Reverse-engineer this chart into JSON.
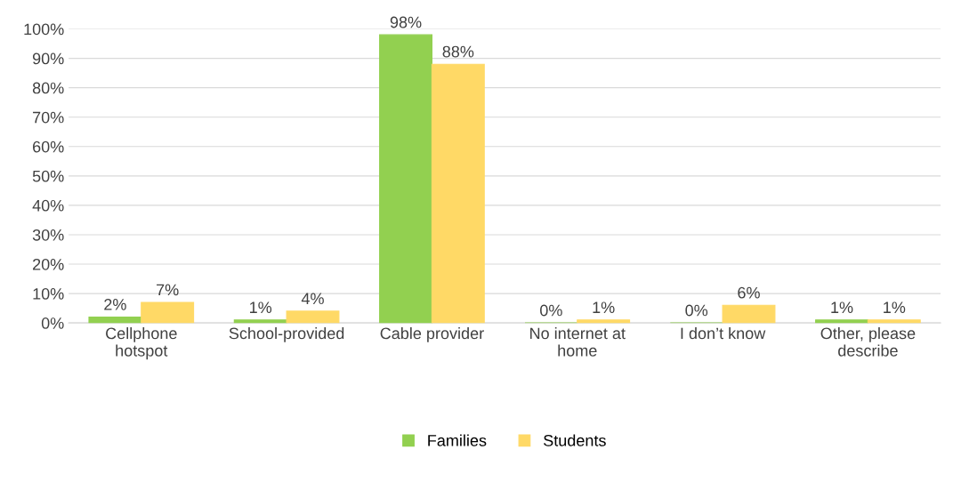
{
  "chart_data": {
    "type": "bar",
    "categories": [
      "Cellphone hotspot",
      "School-provided",
      "Cable provider",
      "No internet at home",
      "I don’t know",
      "Other, please describe"
    ],
    "series": [
      {
        "name": "Families",
        "color": "#92d050",
        "values": [
          2,
          1,
          98,
          0,
          0,
          1
        ],
        "value_labels": [
          "2%",
          "1%",
          "98%",
          "0%",
          "0%",
          "1%"
        ]
      },
      {
        "name": "Students",
        "color": "#ffd966",
        "values": [
          7,
          4,
          88,
          1,
          6,
          1
        ],
        "value_labels": [
          "7%",
          "4%",
          "88%",
          "1%",
          "6%",
          "1%"
        ]
      }
    ],
    "ylim": [
      0,
      100
    ],
    "yticks": [
      {
        "value": 0,
        "label": "0%"
      },
      {
        "value": 10,
        "label": "10%"
      },
      {
        "value": 20,
        "label": "20%"
      },
      {
        "value": 30,
        "label": "30%"
      },
      {
        "value": 40,
        "label": "40%"
      },
      {
        "value": 50,
        "label": "50%"
      },
      {
        "value": 60,
        "label": "60%"
      },
      {
        "value": 70,
        "label": "70%"
      },
      {
        "value": 80,
        "label": "80%"
      },
      {
        "value": 90,
        "label": "90%"
      },
      {
        "value": 100,
        "label": "100%"
      }
    ],
    "grid": "y",
    "legend": "bottom"
  }
}
